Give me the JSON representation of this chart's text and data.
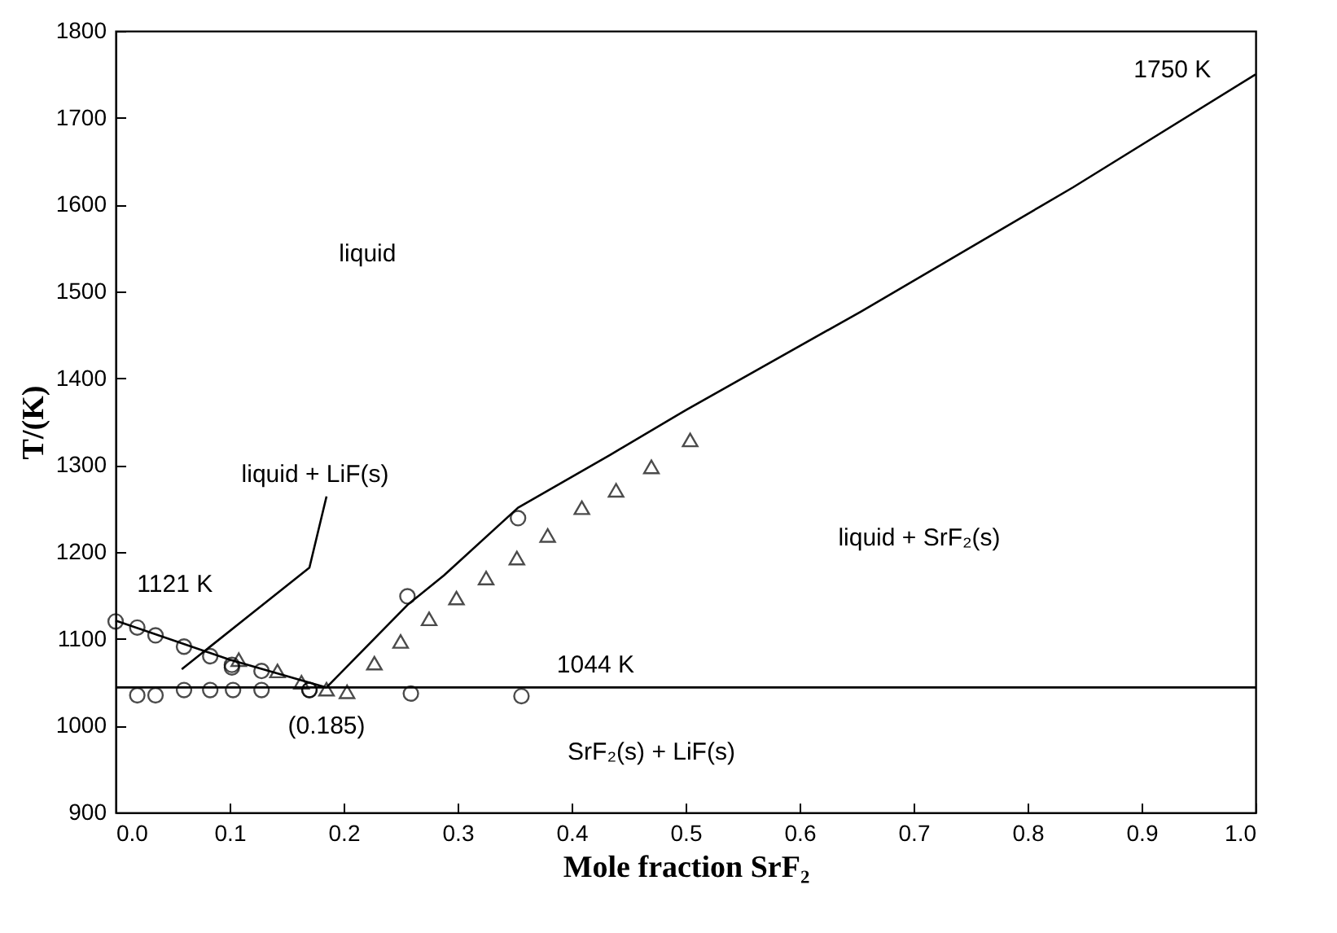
{
  "chart_data": {
    "type": "scatter",
    "xlabel": "Mole fraction SrF₂",
    "ylabel": "T/(K)",
    "xlim": [
      0,
      1
    ],
    "ylim": [
      900,
      1800
    ],
    "xticks": [
      {
        "value": 0,
        "label": "0.0"
      },
      0.1,
      0.2,
      0.3,
      0.4,
      0.5,
      0.6,
      0.7,
      0.8,
      0.9,
      {
        "value": 1,
        "label": "1.0"
      }
    ],
    "yticks": [
      900,
      1000,
      1100,
      1200,
      1300,
      1400,
      1500,
      1600,
      1700,
      1800
    ],
    "grid": false,
    "series": [
      {
        "type": "line",
        "color": "#000000",
        "marker": "none",
        "x": [
          0,
          1
        ],
        "values": [
          1044,
          1044
        ]
      },
      {
        "type": "line",
        "color": "#000000",
        "marker": "none",
        "x": [
          0,
          0.1,
          0.185
        ],
        "values": [
          1121,
          1076,
          1044
        ]
      },
      {
        "type": "line",
        "color": "#000000",
        "marker": "none",
        "x": [
          0.185,
          0.256,
          0.288,
          0.353,
          0.434,
          0.501,
          0.654,
          0.84,
          1.0
        ],
        "values": [
          1044,
          1139,
          1173,
          1251,
          1312,
          1364,
          1477,
          1620,
          1750
        ]
      },
      {
        "type": "line",
        "color": "#000000",
        "marker": "none",
        "x": [
          0.058,
          0.17,
          0.185
        ],
        "values": [
          1065,
          1182,
          1264
        ]
      },
      {
        "color": "#000000",
        "marker": "circle",
        "x": [
          0,
          0.019,
          0.035,
          0.06,
          0.083,
          0.102,
          0.102,
          0.128,
          0.17,
          0.019,
          0.035,
          0.06,
          0.083,
          0.103,
          0.128,
          0.17,
          0.259,
          0.356,
          0.256,
          0.353
        ],
        "values": [
          1120,
          1113,
          1104,
          1091,
          1080,
          1070,
          1067,
          1063,
          1041,
          1035,
          1035,
          1041,
          1041,
          1041,
          1041,
          1041,
          1037,
          1034,
          1149,
          1239
        ]
      },
      {
        "color": "#000000",
        "marker": "triangle",
        "x": [
          0.108,
          0.142,
          0.163,
          0.185,
          0.203,
          0.227,
          0.25,
          0.275,
          0.299,
          0.325,
          0.352,
          0.379,
          0.409,
          0.439,
          0.47,
          0.504
        ],
        "values": [
          1076,
          1063,
          1050,
          1042,
          1039,
          1072,
          1097,
          1123,
          1147,
          1170,
          1193,
          1219,
          1251,
          1271,
          1298,
          1329
        ]
      }
    ],
    "annotations": [
      "liquid",
      "liquid + LiF(s)",
      "1121 K",
      "1044 K",
      "(0.185)",
      "liquid + SrF₂(s)",
      "SrF₂(s) + LiF(s)",
      "1750 K"
    ]
  }
}
